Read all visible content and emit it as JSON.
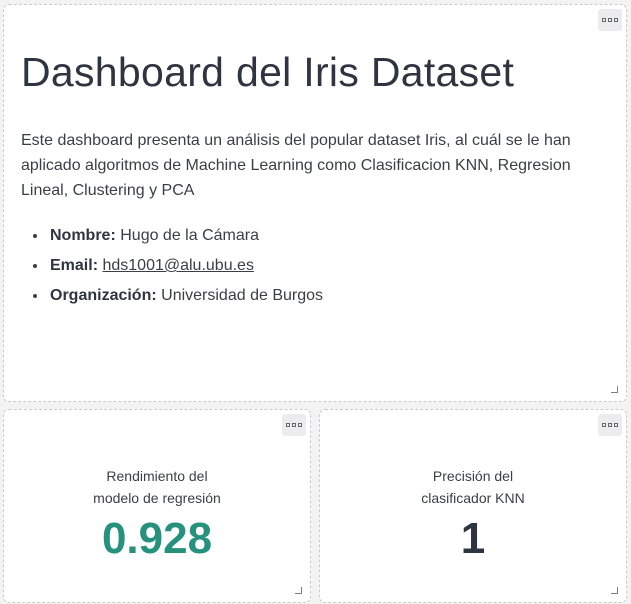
{
  "intro": {
    "title": "Dashboard del Iris Dataset",
    "description": "Este dashboard presenta un análisis del popular dataset Iris, al cuál se le han aplicado algoritmos de Machine Learning como Clasificacion KNN, Regresion Lineal, Clustering y PCA",
    "items": [
      {
        "label": "Nombre:",
        "value": "Hugo de la Cámara"
      },
      {
        "label": "Email:",
        "value": "hds1001@alu.ubu.es"
      },
      {
        "label": "Organización:",
        "value": "Universidad de Burgos"
      }
    ]
  },
  "regression_kpi": {
    "label_line1": "Rendimiento del",
    "label_line2": "modelo de regresión",
    "value": "0.928",
    "color": "#26917c"
  },
  "knn_kpi": {
    "label_line1": "Precisión del",
    "label_line2": "clasificador KNN",
    "value": "1",
    "color": "#2f3540"
  },
  "icons": {
    "menu": "more-options-icon",
    "resize": "resize-handle-icon"
  }
}
